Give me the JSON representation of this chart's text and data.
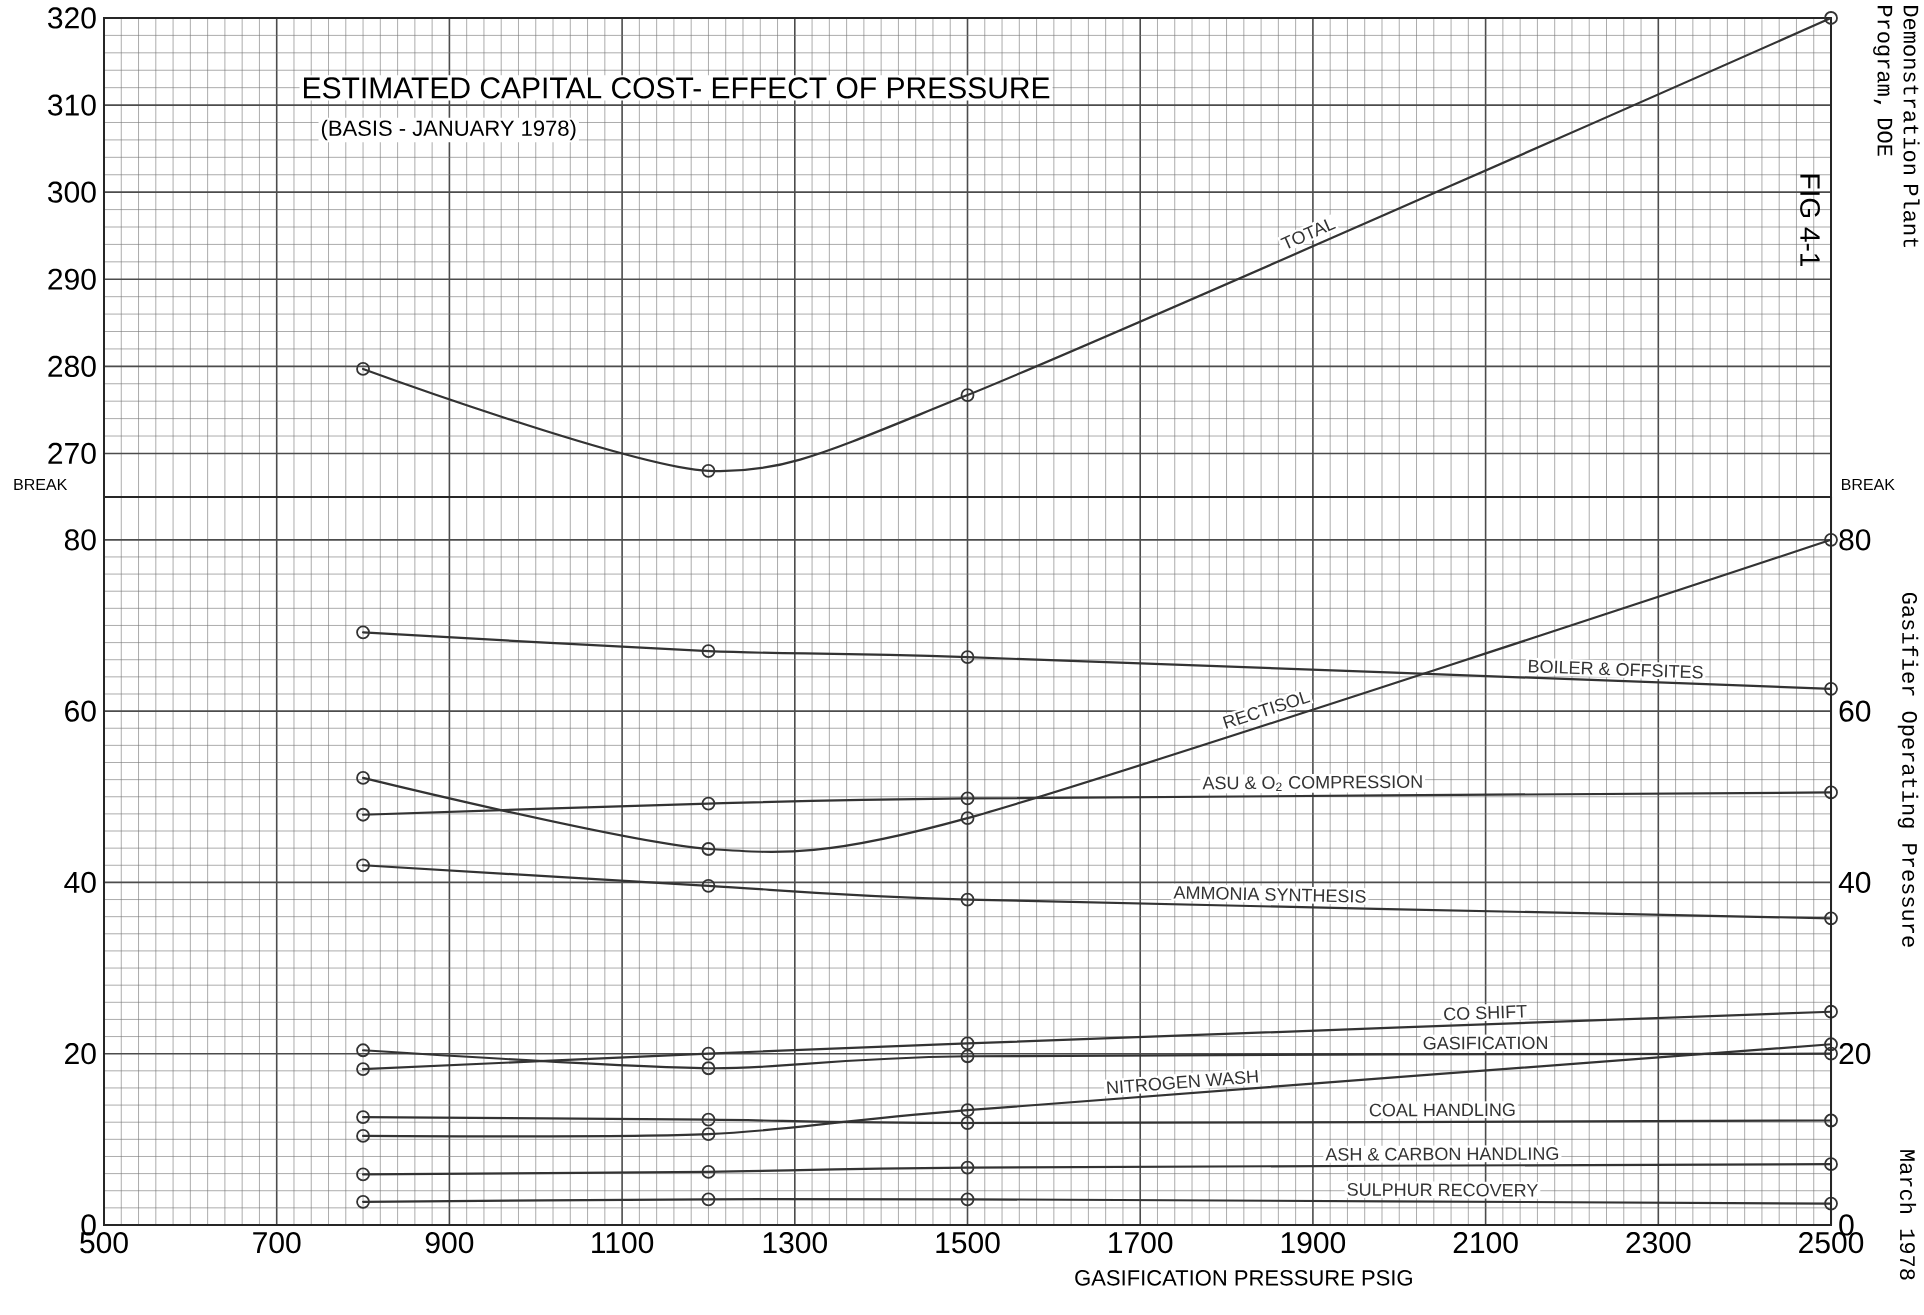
{
  "chart_data": [
    {
      "type": "line",
      "title": "ESTIMATED CAPITAL COST- EFFECT OF PRESSURE",
      "subtitle": "(BASIS - JANUARY 1978)",
      "xlim": [
        500,
        2500
      ],
      "xticks": [
        500,
        700,
        900,
        1100,
        1300,
        1500,
        1700,
        1900,
        2100,
        2300,
        2500
      ],
      "ylim": [
        265,
        320
      ],
      "yticks": [
        270,
        280,
        290,
        300,
        310,
        320
      ],
      "tick_labels": "y",
      "grid": true,
      "marker": "circle",
      "line_style": "solid",
      "annotations": [
        "FIG 4-1"
      ],
      "x": [
        800,
        1200,
        1500,
        2500
      ],
      "series": [
        {
          "name": "TOTAL",
          "color": "#333333",
          "values": [
            279.7,
            268.0,
            276.7,
            320.0
          ]
        }
      ]
    },
    {
      "type": "line",
      "xlabel": "GASIFICATION PRESSURE PSIG",
      "xlim": [
        500,
        2500
      ],
      "xticks": [
        500,
        700,
        900,
        1100,
        1300,
        1500,
        1700,
        1900,
        2100,
        2300,
        2500
      ],
      "ylim": [
        0,
        85
      ],
      "yticks": [
        0,
        20,
        40,
        60,
        80
      ],
      "y2lim": [
        0,
        85
      ],
      "y2ticks": [
        0,
        20,
        40,
        60,
        80
      ],
      "grid": true,
      "marker": "circle",
      "line_style": "solid",
      "annotations": [
        "BREAK",
        "BREAK",
        "Demonstration Plant Program, DOE",
        "Gasifier Operating Pressure",
        "March 1978"
      ],
      "x": [
        800,
        1200,
        1500,
        2500
      ],
      "series": [
        {
          "name": "RECTISOL",
          "color": "#333333",
          "values": [
            52.2,
            43.9,
            47.5,
            80.0
          ]
        },
        {
          "name": "BOILER & OFFSITES",
          "color": "#333333",
          "values": [
            69.2,
            67.0,
            66.3,
            62.6
          ]
        },
        {
          "name": "ASU & O$_{2}$ COMPRESSION",
          "color": "#333333",
          "values": [
            47.9,
            49.2,
            49.8,
            50.5
          ]
        },
        {
          "name": "AMMONIA SYNTHESIS",
          "color": "#333333",
          "values": [
            42.0,
            39.6,
            38.0,
            35.8
          ]
        },
        {
          "name": "CO SHIFT",
          "color": "#333333",
          "values": [
            18.2,
            20.0,
            21.2,
            24.9
          ]
        },
        {
          "name": "GASIFICATION",
          "color": "#333333",
          "values": [
            20.4,
            18.3,
            19.7,
            20.0
          ]
        },
        {
          "name": "NITROGEN WASH",
          "color": "#333333",
          "values": [
            10.4,
            10.6,
            13.4,
            21.1
          ]
        },
        {
          "name": "COAL HANDLING",
          "color": "#333333",
          "values": [
            12.6,
            12.3,
            11.9,
            12.2
          ]
        },
        {
          "name": "ASH & CARBON HANDLING",
          "color": "#333333",
          "values": [
            5.9,
            6.2,
            6.7,
            7.1
          ]
        },
        {
          "name": "SULPHUR RECOVERY",
          "color": "#333333",
          "values": [
            2.7,
            3.0,
            3.0,
            2.5
          ]
        }
      ]
    }
  ]
}
